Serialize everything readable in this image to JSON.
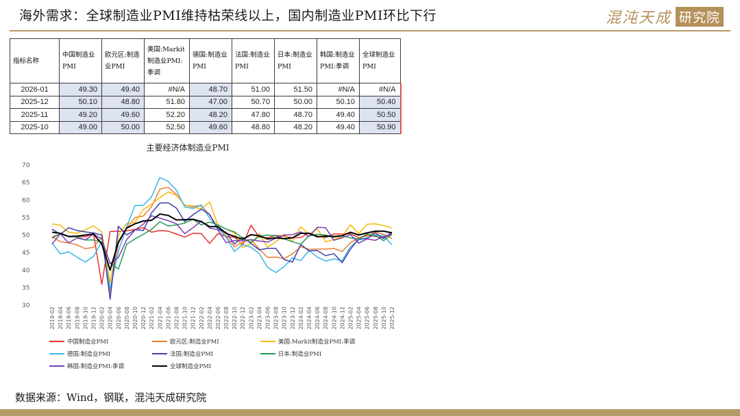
{
  "header": {
    "title": "海外需求：全球制造业PMI维持枯荣线以上，国内制造业PMI环比下行",
    "logo_text": "混沌天成",
    "logo_box": "研究院"
  },
  "table": {
    "headers": [
      "指标名称",
      "中国制造业PMI",
      "欧元区:制造业PMI",
      "美国:Markit制造业PMI:季调",
      "德国:制造业PMI",
      "法国:制造业PMI",
      "日本:制造业PMI",
      "韩国:制造业PMI:季调",
      "全球制造业PMI"
    ],
    "rows": [
      [
        "2026-01",
        "49.30",
        "49.40",
        "#N/A",
        "48.70",
        "51.00",
        "51.50",
        "#N/A",
        "#N/A"
      ],
      [
        "2025-12",
        "50.10",
        "48.80",
        "51.80",
        "47.00",
        "50.70",
        "50.00",
        "50.10",
        "50.40"
      ],
      [
        "2025-11",
        "49.20",
        "49.60",
        "52.20",
        "48.20",
        "47.80",
        "48.70",
        "49.40",
        "50.50"
      ],
      [
        "2025-10",
        "49.00",
        "50.00",
        "52.50",
        "49.60",
        "48.80",
        "48.20",
        "49.40",
        "50.90"
      ]
    ]
  },
  "chart_data": {
    "type": "line",
    "title": "主要经济体制造业PMI",
    "xlabel": "",
    "ylabel": "",
    "ylim": [
      30,
      70
    ],
    "yticks": [
      "30",
      "35",
      "40",
      "45",
      "50",
      "55",
      "60",
      "65",
      "70"
    ],
    "x": [
      "2019-02",
      "2019-04",
      "2019-06",
      "2019-08",
      "2019-10",
      "2019-12",
      "2020-02",
      "2020-04",
      "2020-06",
      "2020-08",
      "2020-10",
      "2020-12",
      "2021-02",
      "2021-04",
      "2021-06",
      "2021-08",
      "2021-10",
      "2021-12",
      "2022-02",
      "2022-04",
      "2022-06",
      "2022-08",
      "2022-10",
      "2022-12",
      "2023-02",
      "2023-04",
      "2023-06",
      "2023-08",
      "2023-10",
      "2023-12",
      "2024-02",
      "2024-04",
      "2024-06",
      "2024-08",
      "2024-10",
      "2024-12",
      "2025-02",
      "2025-04",
      "2025-06",
      "2025-08",
      "2025-10",
      "2025-12"
    ],
    "legend": [
      "中国制造业PMI",
      "欧元区:制造业PMI",
      "美国:Markit制造业PMI:季调",
      "德国:制造业PMI",
      "法国:制造业PMI",
      "日本:制造业PMI",
      "韩国:制造业PMI:季调",
      "全球制造业PMI"
    ],
    "colors": [
      "#e8302b",
      "#ed7d31",
      "#f5b800",
      "#39b4e6",
      "#3c3eab",
      "#1e9a55",
      "#7a3db5",
      "#000000"
    ],
    "series": [
      {
        "name": "中国制造业PMI",
        "values": [
          49.2,
          50.1,
          49.4,
          49.5,
          49.3,
          50.2,
          35.7,
          50.8,
          50.9,
          51.0,
          51.4,
          51.9,
          50.6,
          51.1,
          50.9,
          50.1,
          49.2,
          50.3,
          50.2,
          47.4,
          50.2,
          49.4,
          49.2,
          47.0,
          52.6,
          49.2,
          49.0,
          49.7,
          49.5,
          49.0,
          49.1,
          50.4,
          49.5,
          49.1,
          50.1,
          50.1,
          50.2,
          49.0,
          49.7,
          49.4,
          49.0,
          50.1
        ]
      },
      {
        "name": "欧元区:制造业PMI",
        "values": [
          49.3,
          47.9,
          47.6,
          47.0,
          45.9,
          46.3,
          49.2,
          33.4,
          47.4,
          51.7,
          54.8,
          55.2,
          57.9,
          62.9,
          63.4,
          61.4,
          58.3,
          58.0,
          58.2,
          55.5,
          52.1,
          49.6,
          46.4,
          47.8,
          48.5,
          45.8,
          43.4,
          43.5,
          43.1,
          44.4,
          46.5,
          45.7,
          45.8,
          45.8,
          46.0,
          45.1,
          47.6,
          49.0,
          49.5,
          50.7,
          50.0,
          48.8
        ]
      },
      {
        "name": "美国:Markit制造业PMI:季调",
        "values": [
          53.0,
          52.6,
          50.6,
          50.3,
          51.3,
          52.4,
          50.7,
          36.1,
          49.8,
          53.1,
          53.4,
          57.1,
          58.6,
          60.5,
          62.1,
          61.1,
          58.4,
          57.7,
          57.3,
          59.2,
          52.7,
          51.5,
          50.4,
          46.2,
          47.3,
          50.2,
          46.3,
          47.9,
          50.0,
          47.9,
          52.2,
          50.0,
          51.6,
          47.9,
          48.5,
          49.4,
          52.7,
          50.2,
          52.9,
          53.0,
          52.5,
          51.8
        ]
      },
      {
        "name": "德国:制造业PMI",
        "values": [
          47.6,
          44.4,
          45.0,
          43.5,
          42.1,
          43.7,
          48.0,
          34.5,
          45.2,
          52.2,
          58.2,
          58.3,
          60.7,
          66.2,
          65.1,
          62.6,
          57.8,
          57.4,
          58.4,
          54.6,
          52.0,
          49.1,
          45.1,
          47.1,
          46.3,
          44.5,
          40.6,
          39.1,
          40.8,
          43.3,
          42.5,
          45.4,
          43.5,
          42.4,
          43.0,
          42.5,
          46.5,
          48.4,
          49.0,
          49.8,
          49.6,
          47.0
        ]
      },
      {
        "name": "法国:制造业PMI",
        "values": [
          51.5,
          50.0,
          51.9,
          51.1,
          50.7,
          50.4,
          49.8,
          31.5,
          52.3,
          49.8,
          51.3,
          51.1,
          56.1,
          58.9,
          59.0,
          57.5,
          53.6,
          55.6,
          57.2,
          55.7,
          51.4,
          50.6,
          47.2,
          49.2,
          47.4,
          45.6,
          46.0,
          46.0,
          42.8,
          42.1,
          47.1,
          45.3,
          45.4,
          43.9,
          44.5,
          41.9,
          45.8,
          48.7,
          48.8,
          50.4,
          48.8,
          50.7
        ]
      },
      {
        "name": "日本:制造业PMI",
        "values": [
          48.9,
          50.2,
          49.3,
          49.3,
          48.4,
          48.4,
          47.8,
          41.9,
          40.1,
          47.2,
          48.7,
          50.0,
          51.4,
          53.6,
          52.4,
          52.7,
          53.2,
          54.3,
          52.7,
          53.5,
          52.7,
          51.5,
          50.7,
          48.9,
          47.7,
          49.5,
          49.8,
          49.6,
          48.7,
          47.9,
          47.2,
          49.6,
          50.0,
          49.8,
          49.2,
          49.6,
          49.0,
          48.7,
          50.1,
          49.7,
          48.2,
          50.0
        ]
      },
      {
        "name": "韩国:制造业PMI:季调",
        "values": [
          47.2,
          50.2,
          47.5,
          49.0,
          48.4,
          50.1,
          48.7,
          41.6,
          43.4,
          48.5,
          51.2,
          52.9,
          55.3,
          54.6,
          53.9,
          53.0,
          50.2,
          51.9,
          53.8,
          51.8,
          51.3,
          47.6,
          48.2,
          48.2,
          48.5,
          48.1,
          47.8,
          48.9,
          49.8,
          49.9,
          50.7,
          49.4,
          52.0,
          51.9,
          48.3,
          49.0,
          49.9,
          47.5,
          48.7,
          48.3,
          49.4,
          50.1
        ]
      },
      {
        "name": "全球制造业PMI",
        "values": [
          50.6,
          50.3,
          49.4,
          49.5,
          49.8,
          50.1,
          47.2,
          39.8,
          47.8,
          51.8,
          53.0,
          53.8,
          54.0,
          55.8,
          55.4,
          54.1,
          54.2,
          54.3,
          53.6,
          52.2,
          52.2,
          50.3,
          49.4,
          48.6,
          49.9,
          49.6,
          48.7,
          49.0,
          48.8,
          49.0,
          50.3,
          50.3,
          49.3,
          49.5,
          49.4,
          49.6,
          50.6,
          49.8,
          50.4,
          50.9,
          50.9,
          50.4
        ]
      }
    ]
  },
  "source": "数据来源：Wind，钢联，混沌天成研究院"
}
